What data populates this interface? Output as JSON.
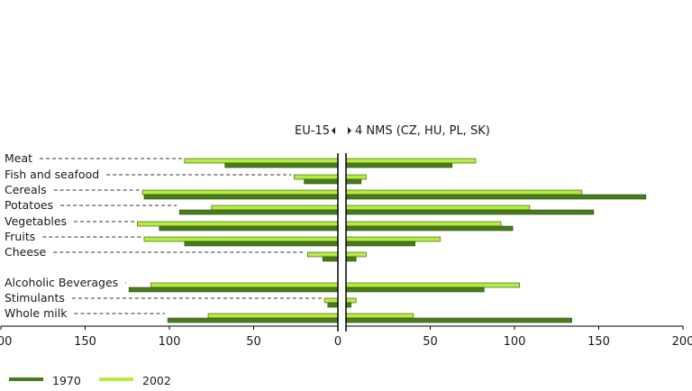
{
  "chart_data": {
    "type": "bar",
    "orientation": "horizontal",
    "layout": "butterfly",
    "header": {
      "left_label": "EU-15",
      "right_label": "4 NMS (CZ, HU, PL, SK)"
    },
    "categories": [
      "Meat",
      "Fish and seafood",
      "Cereals",
      "Potatoes",
      "Vegetables",
      "Fruits",
      "Cheese",
      "Alcoholic Beverages",
      "Stimulants",
      "Whole milk"
    ],
    "left_panel": {
      "name": "EU-15",
      "series": [
        {
          "name": "1970",
          "color": "#4a7a1e",
          "values": [
            67,
            20,
            115,
            94,
            106,
            91,
            9,
            124,
            6,
            101
          ]
        },
        {
          "name": "2002",
          "color": "#b6ec3e",
          "values": [
            91,
            26,
            116,
            75,
            119,
            115,
            18,
            111,
            8,
            77
          ]
        }
      ]
    },
    "right_panel": {
      "name": "4 NMS (CZ, HU, PL, SK)",
      "series": [
        {
          "name": "1970",
          "color": "#4a7a1e",
          "values": [
            63,
            9,
            178,
            147,
            99,
            41,
            6,
            82,
            3,
            134
          ]
        },
        {
          "name": "2002",
          "color": "#b6ec3e",
          "values": [
            77,
            12,
            140,
            109,
            92,
            56,
            12,
            103,
            6,
            40
          ]
        }
      ]
    },
    "x_ticks": [
      "200",
      "150",
      "100",
      "50",
      "0",
      "50",
      "100",
      "150",
      "200"
    ],
    "xlim": [
      0,
      200
    ],
    "legend": [
      {
        "label": "1970",
        "color": "#4a7a1e"
      },
      {
        "label": "2002",
        "color": "#b6ec3e"
      }
    ],
    "legend_position": "bottom-left",
    "grid": false
  }
}
